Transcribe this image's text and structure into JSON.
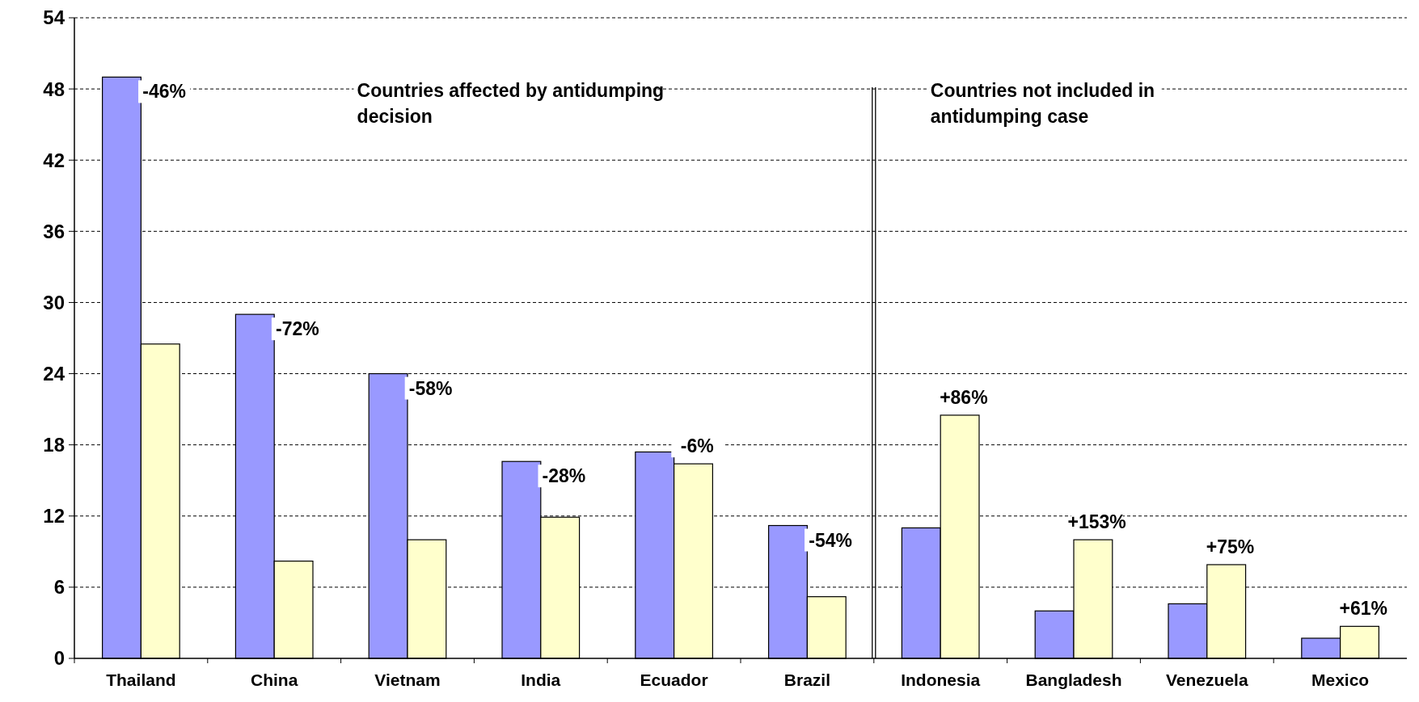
{
  "chart_data": {
    "type": "bar",
    "categories": [
      "Thailand",
      "China",
      "Vietnam",
      "India",
      "Ecuador",
      "Brazil",
      "Indonesia",
      "Bangladesh",
      "Venezuela",
      "Mexico"
    ],
    "series": [
      {
        "color": "#9999ff",
        "values": [
          49.0,
          29.0,
          24.0,
          16.6,
          17.4,
          11.2,
          11.0,
          4.0,
          4.6,
          1.7
        ]
      },
      {
        "color": "#ffffcc",
        "values": [
          26.5,
          8.2,
          10.0,
          11.9,
          16.4,
          5.2,
          20.5,
          10.0,
          7.9,
          2.7
        ]
      }
    ],
    "ylim": [
      0,
      54
    ],
    "yticks": [
      0,
      6,
      12,
      18,
      24,
      30,
      36,
      42,
      48,
      54
    ],
    "grid": "y",
    "annotations": [
      "Countries affected by antidumping decision",
      "Countries not included in antidumping case",
      "-46%",
      "-72%",
      "-58%",
      "-28%",
      "-6%",
      "-54%",
      "+86%",
      "+153%",
      "+75%",
      "+61%"
    ]
  }
}
